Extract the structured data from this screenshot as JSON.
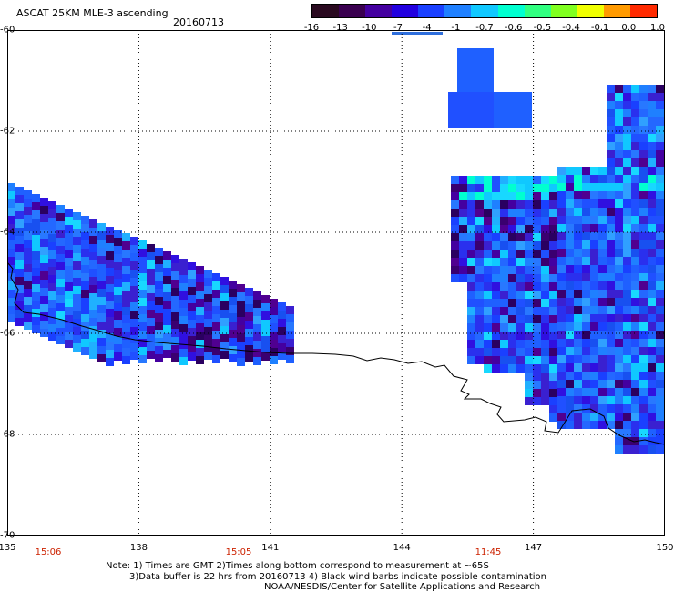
{
  "title": "ASCAT 25KM MLE-3 ascending",
  "date": "20160713",
  "colorbar": {
    "labels": [
      "-16",
      "-13",
      "-10",
      "-7",
      "-4",
      "-1",
      "-0.7",
      "-0.6",
      "-0.5",
      "-0.4",
      "-0.1",
      "0.0",
      "1.0"
    ],
    "colors": [
      "#2a0a20",
      "#3a0050",
      "#4400a0",
      "#2200e0",
      "#1a40ff",
      "#1f80ff",
      "#10c8ff",
      "#00ffd0",
      "#30ff80",
      "#80ff20",
      "#f0ff00",
      "#ff9a00",
      "#ff2a00"
    ]
  },
  "axes": {
    "lat_labels": [
      "-60",
      "-62",
      "-64",
      "-66",
      "-68",
      "-70"
    ],
    "lon_labels": [
      "135",
      "138",
      "141",
      "144",
      "147",
      "150"
    ]
  },
  "times": [
    "15:06",
    "15:05",
    "11:45"
  ],
  "notes": {
    "line1": "Note: 1) Times are GMT 2)Times along bottom correspond to measurement at ~65S",
    "line2": "3)Data buffer is 22 hrs from 20160713 4) Black wind barbs indicate possible contamination",
    "line3": "NOAA/NESDIS/Center for Satellite Applications and Research"
  }
}
